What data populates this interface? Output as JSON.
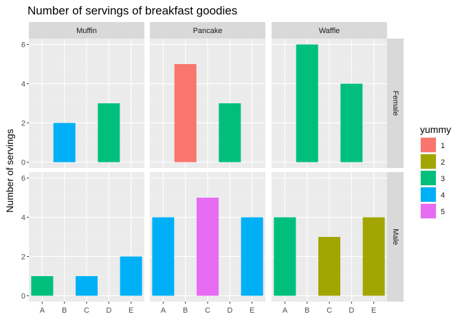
{
  "chart_data": {
    "type": "bar",
    "title": "Number of servings of breakfast goodies",
    "ylabel": "Number of servings",
    "xlabel": "",
    "categories": [
      "A",
      "B",
      "C",
      "D",
      "E"
    ],
    "ylim": [
      0,
      6.5
    ],
    "yticks": [
      0,
      2,
      4,
      6
    ],
    "facet_cols": [
      "Muffin",
      "Pancake",
      "Waffle"
    ],
    "facet_rows": [
      "Female",
      "Male"
    ],
    "legend": {
      "title": "yummy",
      "position": "right",
      "entries": [
        {
          "label": "1",
          "color": "#F8766D"
        },
        {
          "label": "2",
          "color": "#A3A500"
        },
        {
          "label": "3",
          "color": "#00BF7D"
        },
        {
          "label": "4",
          "color": "#00B0F6"
        },
        {
          "label": "5",
          "color": "#E76BF3"
        }
      ]
    },
    "panels": [
      {
        "row": "Female",
        "col": "Muffin",
        "bars": [
          {
            "x": "B",
            "y": 2,
            "yummy": "4"
          },
          {
            "x": "D",
            "y": 3,
            "yummy": "3"
          }
        ]
      },
      {
        "row": "Female",
        "col": "Pancake",
        "bars": [
          {
            "x": "B",
            "y": 5,
            "yummy": "1"
          },
          {
            "x": "D",
            "y": 3,
            "yummy": "3"
          }
        ]
      },
      {
        "row": "Female",
        "col": "Waffle",
        "bars": [
          {
            "x": "B",
            "y": 6,
            "yummy": "3"
          },
          {
            "x": "D",
            "y": 4,
            "yummy": "3"
          }
        ]
      },
      {
        "row": "Male",
        "col": "Muffin",
        "bars": [
          {
            "x": "A",
            "y": 1,
            "yummy": "3"
          },
          {
            "x": "C",
            "y": 1,
            "yummy": "4"
          },
          {
            "x": "E",
            "y": 2,
            "yummy": "4"
          }
        ]
      },
      {
        "row": "Male",
        "col": "Pancake",
        "bars": [
          {
            "x": "A",
            "y": 4,
            "yummy": "4"
          },
          {
            "x": "C",
            "y": 5,
            "yummy": "5"
          },
          {
            "x": "E",
            "y": 4,
            "yummy": "4"
          }
        ]
      },
      {
        "row": "Male",
        "col": "Waffle",
        "bars": [
          {
            "x": "A",
            "y": 4,
            "yummy": "3"
          },
          {
            "x": "C",
            "y": 3,
            "yummy": "2"
          },
          {
            "x": "E",
            "y": 4,
            "yummy": "2"
          }
        ]
      }
    ],
    "grid": true
  }
}
